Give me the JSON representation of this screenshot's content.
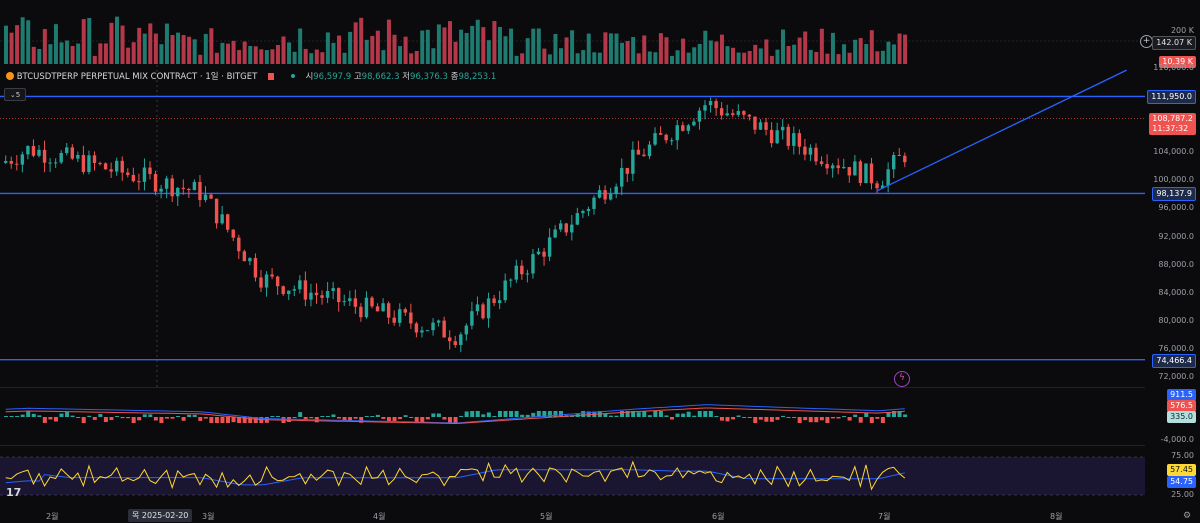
{
  "symbol": {
    "title": "BTCUSDTPERP PERPETUAL MIX CONTRACT · 1일 · BITGET",
    "open_label": "시",
    "open": "96,597.9",
    "high_label": "고",
    "high": "98,662.3",
    "low_label": "저",
    "low": "96,376.3",
    "close_label": "종",
    "close": "98,253.1",
    "collapse_label": "5"
  },
  "volume_axis": {
    "ticks": [
      "200 K"
    ],
    "current": "142.07 K",
    "last_bar": "10.39 K"
  },
  "price_axis": {
    "ticks": [
      "116,000.0",
      "104,000.0",
      "100,000.0",
      "96,000.0",
      "92,000.0",
      "88,000.0",
      "84,000.0",
      "80,000.0",
      "76,000.0",
      "72,000.0"
    ],
    "levels": [
      {
        "label": "111,950.0",
        "value": 111950
      },
      {
        "label": "98,137.9",
        "value": 98137.9
      },
      {
        "label": "74,466.4",
        "value": 74466.4
      }
    ],
    "last_price": "108,787.2",
    "countdown": "11:37:32"
  },
  "macd": {
    "val1": "911.5",
    "val2": "576.5",
    "val3": "335.0",
    "bottom_tick": "-4,000.0"
  },
  "rsi": {
    "ticks": [
      "75.00",
      "25.00"
    ],
    "val1": "57.45",
    "val2": "54.75"
  },
  "time_axis": {
    "months": [
      "2월",
      "3월",
      "4월",
      "5월",
      "6월",
      "7월",
      "8월"
    ],
    "crosshair_date": "목 2025-02-20"
  },
  "logo_text": "17",
  "colors": {
    "up": "#26a69a",
    "down": "#ef5350",
    "level_line": "#2962ff",
    "volume_up": "#1f7a6f",
    "volume_down": "#b5384a"
  },
  "chart_data": {
    "type": "candlestick",
    "price_range": [
      70000,
      118000
    ],
    "horizontal_levels": [
      111950,
      98137.9,
      74466.4
    ],
    "trendline": [
      {
        "date": "2025-06-22",
        "price": 98500
      },
      {
        "date": "2025-08-06",
        "price": 115700
      }
    ],
    "ohlc_key_points": [
      {
        "date": "2025-01-20",
        "close": 104500
      },
      {
        "date": "2025-02-20",
        "close": 98253.1
      },
      {
        "date": "2025-03-03",
        "close": 86000
      },
      {
        "date": "2025-04-07",
        "close": 78000
      },
      {
        "date": "2025-05-09",
        "close": 103000
      },
      {
        "date": "2025-05-22",
        "close": 111000
      },
      {
        "date": "2025-06-22",
        "close": 100000
      },
      {
        "date": "2025-07-03",
        "close": 108787.2
      }
    ]
  }
}
